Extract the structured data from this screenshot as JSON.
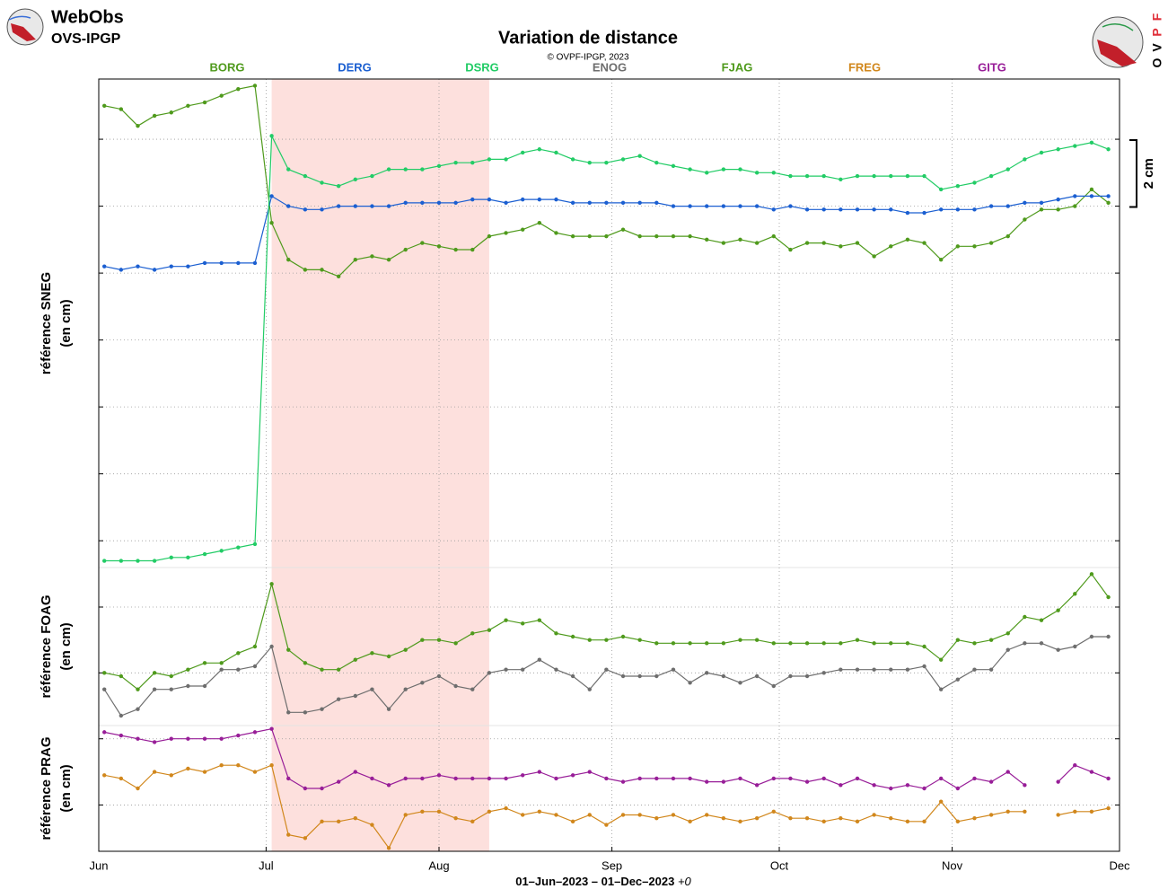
{
  "header": {
    "app": "WebObs",
    "org": "OVS-IPGP",
    "logo_right": [
      "O",
      "V",
      "P",
      "F"
    ]
  },
  "chart_data": {
    "type": "line",
    "title": "Variation de distance",
    "subtitle": "© OVPF-IPGP, 2023",
    "xlabel": "01–Jun–2023 – 01–Dec–2023",
    "xlabel_suffix": "+0",
    "x": [
      1,
      4,
      7,
      10,
      13,
      16,
      19,
      22,
      25,
      28,
      31,
      34,
      37,
      40,
      43,
      46,
      49,
      52,
      55,
      58,
      61,
      64,
      67,
      70,
      73,
      76,
      79,
      82,
      85,
      88,
      91,
      94,
      97,
      100,
      103,
      106,
      109,
      112,
      115,
      118,
      121,
      124,
      127,
      130,
      133,
      136,
      139,
      142,
      145,
      148,
      151,
      154,
      157,
      160,
      163,
      166,
      169,
      172,
      175,
      178,
      181
    ],
    "xlim": [
      0,
      183
    ],
    "xticks": [
      {
        "value": 0,
        "label": "Jun"
      },
      {
        "value": 30,
        "label": "Jul"
      },
      {
        "value": 61,
        "label": "Aug"
      },
      {
        "value": 92,
        "label": "Sep"
      },
      {
        "value": 122,
        "label": "Oct"
      },
      {
        "value": 153,
        "label": "Nov"
      },
      {
        "value": 183,
        "label": "Dec"
      }
    ],
    "grid": true,
    "highlight": {
      "x": [
        31,
        70
      ],
      "color": "#fde0dd"
    },
    "scale_bar": {
      "value": 2,
      "label": "2 cm"
    },
    "panels": [
      {
        "ylabel": [
          "référence SNEG",
          "(en cm)"
        ],
        "ylim": [
          -0.8,
          13.8
        ],
        "yticks": [
          0,
          2,
          4,
          6,
          8,
          10,
          12
        ]
      },
      {
        "ylabel": [
          "référence FOAG",
          "(en cm)"
        ],
        "ylim": [
          -1.6,
          3.2
        ],
        "yticks": [
          0,
          2
        ]
      },
      {
        "ylabel": [
          "référence PRAG",
          "(en cm)"
        ],
        "ylim": [
          -1.4,
          2.4
        ],
        "yticks": [
          0,
          2
        ]
      }
    ],
    "series": [
      {
        "name": "BORG",
        "color": "#4f9a1c",
        "panel": 0,
        "values": [
          13.0,
          12.9,
          12.4,
          12.7,
          12.8,
          13.0,
          13.1,
          13.3,
          13.5,
          13.6,
          9.5,
          8.4,
          8.1,
          8.1,
          7.9,
          8.4,
          8.5,
          8.4,
          8.7,
          8.9,
          8.8,
          8.7,
          8.7,
          9.1,
          9.2,
          9.3,
          9.5,
          9.2,
          9.1,
          9.1,
          9.1,
          9.3,
          9.1,
          9.1,
          9.1,
          9.1,
          9.0,
          8.9,
          9.0,
          8.9,
          9.1,
          8.7,
          8.9,
          8.9,
          8.8,
          8.9,
          8.5,
          8.8,
          9.0,
          8.9,
          8.4,
          8.8,
          8.8,
          8.9,
          9.1,
          9.6,
          9.9,
          9.9,
          10.0,
          10.5,
          10.1
        ]
      },
      {
        "name": "DERG",
        "color": "#1b5fd1",
        "panel": 0,
        "values": [
          8.2,
          8.1,
          8.2,
          8.1,
          8.2,
          8.2,
          8.3,
          8.3,
          8.3,
          8.3,
          10.3,
          10.0,
          9.9,
          9.9,
          10.0,
          10.0,
          10.0,
          10.0,
          10.1,
          10.1,
          10.1,
          10.1,
          10.2,
          10.2,
          10.1,
          10.2,
          10.2,
          10.2,
          10.1,
          10.1,
          10.1,
          10.1,
          10.1,
          10.1,
          10.0,
          10.0,
          10.0,
          10.0,
          10.0,
          10.0,
          9.9,
          10.0,
          9.9,
          9.9,
          9.9,
          9.9,
          9.9,
          9.9,
          9.8,
          9.8,
          9.9,
          9.9,
          9.9,
          10.0,
          10.0,
          10.1,
          10.1,
          10.2,
          10.3,
          10.3,
          10.3
        ]
      },
      {
        "name": "DSRG",
        "color": "#22cc66",
        "panel": 0,
        "values": [
          -0.6,
          -0.6,
          -0.6,
          -0.6,
          -0.5,
          -0.5,
          -0.4,
          -0.3,
          -0.2,
          -0.1,
          12.1,
          11.1,
          10.9,
          10.7,
          10.6,
          10.8,
          10.9,
          11.1,
          11.1,
          11.1,
          11.2,
          11.3,
          11.3,
          11.4,
          11.4,
          11.6,
          11.7,
          11.6,
          11.4,
          11.3,
          11.3,
          11.4,
          11.5,
          11.3,
          11.2,
          11.1,
          11.0,
          11.1,
          11.1,
          11.0,
          11.0,
          10.9,
          10.9,
          10.9,
          10.8,
          10.9,
          10.9,
          10.9,
          10.9,
          10.9,
          10.5,
          10.6,
          10.7,
          10.9,
          11.1,
          11.4,
          11.6,
          11.7,
          11.8,
          11.9,
          11.7
        ]
      },
      {
        "name": "ENOG",
        "color": "#6e6e6e",
        "panel": 1,
        "values": [
          -0.5,
          -1.3,
          -1.1,
          -0.5,
          -0.5,
          -0.4,
          -0.4,
          0.1,
          0.1,
          0.2,
          0.8,
          -1.2,
          -1.2,
          -1.1,
          -0.8,
          -0.7,
          -0.5,
          -1.1,
          -0.5,
          -0.3,
          -0.1,
          -0.4,
          -0.5,
          0,
          0.1,
          0.1,
          0.4,
          0.1,
          -0.1,
          -0.5,
          0.1,
          -0.1,
          -0.1,
          -0.1,
          0.1,
          -0.3,
          0,
          -0.1,
          -0.3,
          -0.1,
          -0.4,
          -0.1,
          -0.1,
          0,
          0.1,
          0.1,
          0.1,
          0.1,
          0.1,
          0.2,
          -0.5,
          -0.2,
          0.1,
          0.1,
          0.7,
          0.9,
          0.9,
          0.7,
          0.8,
          1.1,
          1.1
        ]
      },
      {
        "name": "FJAG",
        "color": "#4f9a1c",
        "panel": 1,
        "values": [
          0,
          -0.1,
          -0.5,
          0,
          -0.1,
          0.1,
          0.3,
          0.3,
          0.6,
          0.8,
          2.7,
          0.7,
          0.3,
          0.1,
          0.1,
          0.4,
          0.6,
          0.5,
          0.7,
          1.0,
          1.0,
          0.9,
          1.2,
          1.3,
          1.6,
          1.5,
          1.6,
          1.2,
          1.1,
          1.0,
          1.0,
          1.1,
          1.0,
          0.9,
          0.9,
          0.9,
          0.9,
          0.9,
          1.0,
          1.0,
          0.9,
          0.9,
          0.9,
          0.9,
          0.9,
          1.0,
          0.9,
          0.9,
          0.9,
          0.8,
          0.4,
          1.0,
          0.9,
          1.0,
          1.2,
          1.7,
          1.6,
          1.9,
          2.4,
          3.0,
          2.3
        ]
      },
      {
        "name": "FREG",
        "color": "#d1871c",
        "panel": 2,
        "values": [
          0.9,
          0.8,
          0.5,
          1.0,
          0.9,
          1.1,
          1.0,
          1.2,
          1.2,
          1.0,
          1.2,
          -0.9,
          -1.0,
          -0.5,
          -0.5,
          -0.4,
          -0.6,
          -1.3,
          -0.3,
          -0.2,
          -0.2,
          -0.4,
          -0.5,
          -0.2,
          -0.1,
          -0.3,
          -0.2,
          -0.3,
          -0.5,
          -0.3,
          -0.6,
          -0.3,
          -0.3,
          -0.4,
          -0.3,
          -0.5,
          -0.3,
          -0.4,
          -0.5,
          -0.4,
          -0.2,
          -0.4,
          -0.4,
          -0.5,
          -0.4,
          -0.5,
          -0.3,
          -0.4,
          -0.5,
          -0.5,
          0.1,
          -0.5,
          -0.4,
          -0.3,
          -0.2,
          -0.2,
          null,
          -0.3,
          -0.2,
          -0.2,
          -0.1
        ]
      },
      {
        "name": "GITG",
        "color": "#981e98",
        "panel": 2,
        "values": [
          2.2,
          2.1,
          2.0,
          1.9,
          2.0,
          2.0,
          2.0,
          2.0,
          2.1,
          2.2,
          2.3,
          0.8,
          0.5,
          0.5,
          0.7,
          1.0,
          0.8,
          0.6,
          0.8,
          0.8,
          0.9,
          0.8,
          0.8,
          0.8,
          0.8,
          0.9,
          1.0,
          0.8,
          0.9,
          1.0,
          0.8,
          0.7,
          0.8,
          0.8,
          0.8,
          0.8,
          0.7,
          0.7,
          0.8,
          0.6,
          0.8,
          0.8,
          0.7,
          0.8,
          0.6,
          0.8,
          0.6,
          0.5,
          0.6,
          0.5,
          0.8,
          0.5,
          0.8,
          0.7,
          1.0,
          0.6,
          null,
          0.7,
          1.2,
          1.0,
          0.8
        ]
      }
    ]
  }
}
